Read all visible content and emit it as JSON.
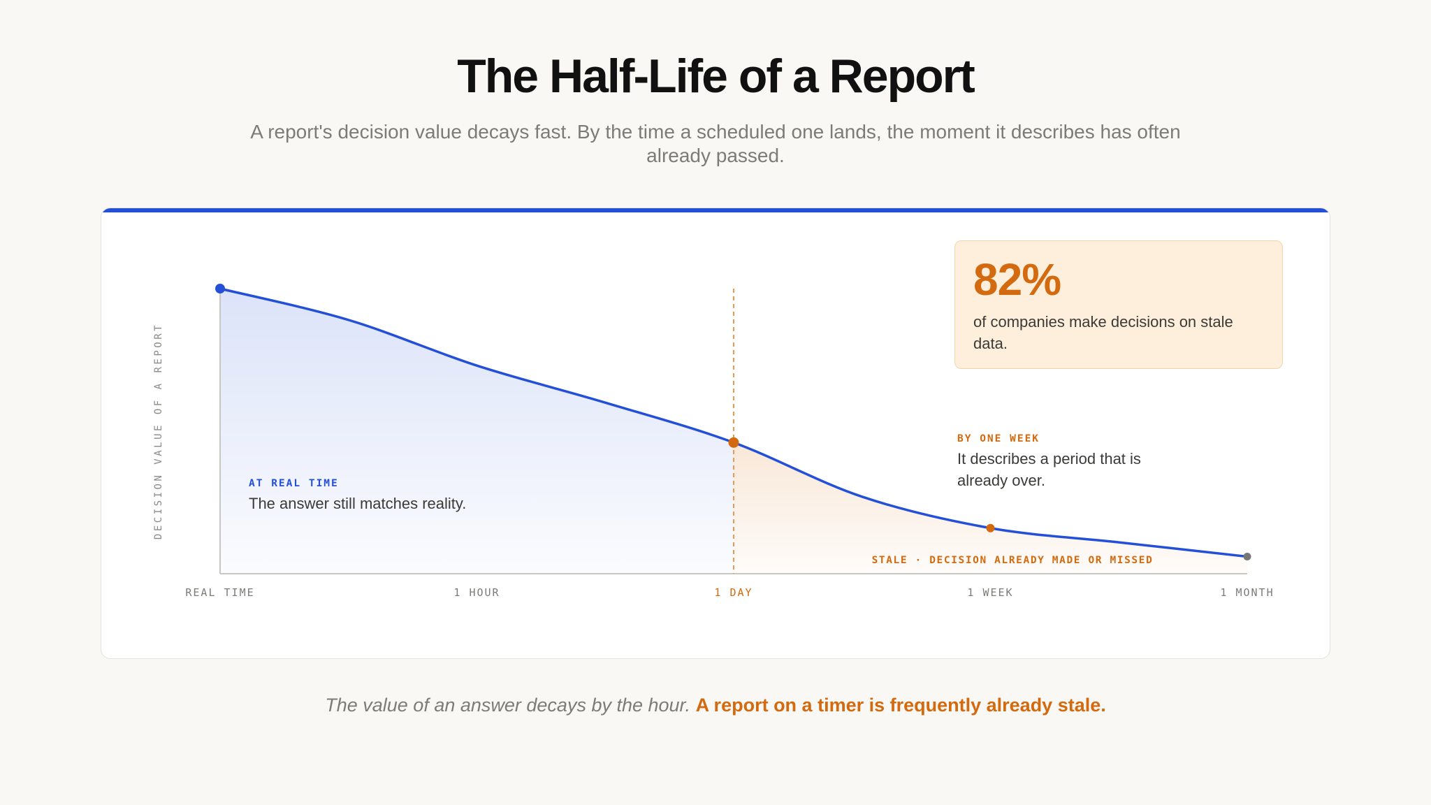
{
  "title": "The Half-Life of a Report",
  "subtitle": "A report's decision value decays fast. By the time a scheduled one lands, the moment it describes has often already passed.",
  "stat": {
    "value": "82%",
    "text": "of companies make decisions on stale data."
  },
  "footer": {
    "italic": "The value of an answer decays by the hour.",
    "strong": "A report on a timer is frequently already stale."
  },
  "colors": {
    "accent_blue": "#2450d8",
    "accent_orange": "#d36a0f",
    "end_point": "#777777",
    "axis": "#c9c7c2",
    "tick_text": "#7d7b76"
  },
  "chart_data": {
    "type": "area",
    "ylabel": "DECISION VALUE OF A REPORT",
    "xlabel": "",
    "x_ticks": [
      "REAL TIME",
      "1 HOUR",
      "1 DAY",
      "1 WEEK",
      "1 MONTH"
    ],
    "highlighted_tick": "1 DAY",
    "ylim": [
      0,
      100
    ],
    "series": [
      {
        "x": [
          0,
          0.5,
          1,
          1.5,
          2,
          2.5,
          3,
          3.5,
          4
        ],
        "y": [
          100,
          89,
          73,
          60,
          46,
          27,
          16,
          11,
          6
        ]
      }
    ],
    "markers": [
      {
        "x": 0,
        "y": 100,
        "role": "start"
      },
      {
        "x": 2,
        "y": 46,
        "role": "threshold"
      },
      {
        "x": 3,
        "y": 16,
        "role": "week"
      },
      {
        "x": 4,
        "y": 6,
        "role": "end"
      }
    ],
    "threshold_x": 2,
    "annotations": [
      {
        "heading": "AT REAL TIME",
        "text": "The answer still matches reality.",
        "tone": "blue"
      },
      {
        "heading": "BY ONE WEEK",
        "text": "It describes a period that is already over.",
        "tone": "orange"
      }
    ],
    "stale_label": "STALE · DECISION ALREADY MADE OR MISSED",
    "grid": false,
    "legend": "none"
  }
}
